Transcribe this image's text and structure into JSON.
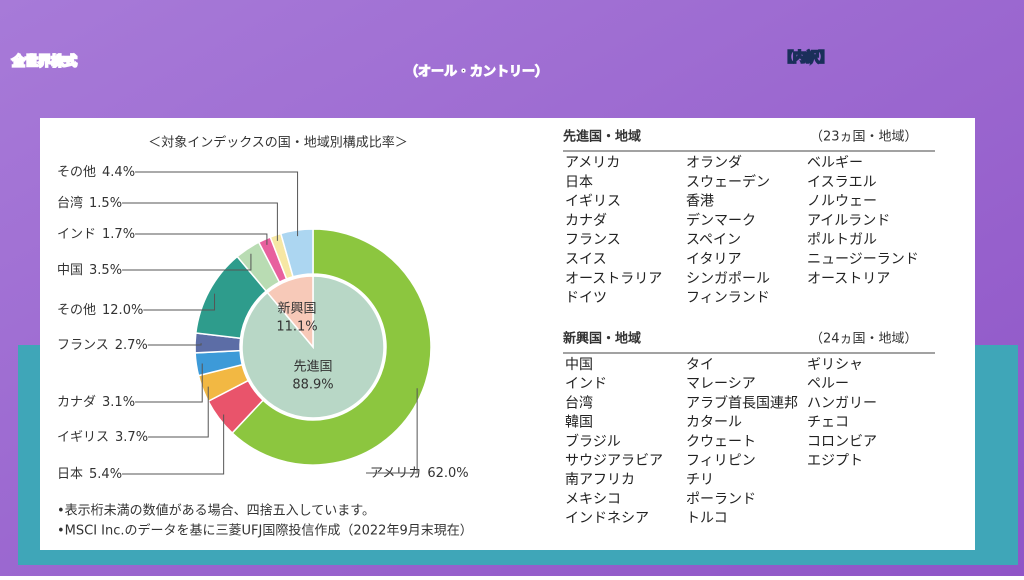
{
  "header": {
    "title": "全世界株式",
    "subtitle": "（オール・カントリー）",
    "tag": "【内訳】"
  },
  "chart_data": {
    "type": "donut",
    "title": "＜対象インデックスの国・地域別構成比率＞",
    "categories": [
      "アメリカ",
      "日本",
      "イギリス",
      "カナダ",
      "フランス",
      "その他",
      "中国",
      "インド",
      "台湾",
      "その他"
    ],
    "values": [
      62.0,
      5.4,
      3.7,
      3.1,
      2.7,
      12.0,
      3.5,
      1.7,
      1.5,
      4.4
    ],
    "value_labels": [
      "62.0%",
      "5.4%",
      "3.7%",
      "3.1%",
      "2.7%",
      "12.0%",
      "3.5%",
      "1.7%",
      "1.5%",
      "4.4%"
    ],
    "colors": [
      "#8cc63f",
      "#e9546b",
      "#f2b843",
      "#3d9ad8",
      "#5c6da6",
      "#2e9c8c",
      "#b9dcb3",
      "#e8609e",
      "#f6e7a4",
      "#acd6f1"
    ],
    "inner": {
      "categories": [
        "先進国",
        "新興国"
      ],
      "values": [
        88.9,
        11.1
      ],
      "value_labels": [
        "88.9%",
        "11.1%"
      ],
      "colors": [
        "#b8d7c6",
        "#f7c9b8"
      ]
    }
  },
  "notes": [
    "•表示桁未満の数値がある場合、四捨五入しています。",
    "•MSCI Inc.のデータを基に三菱UFJ国際投信作成（2022年9月末現在）"
  ],
  "developed": {
    "title": "先進国・地域",
    "count": "（23ヵ国・地域）",
    "countries": [
      "アメリカ",
      "日本",
      "イギリス",
      "カナダ",
      "フランス",
      "スイス",
      "オーストラリア",
      "ドイツ",
      "オランダ",
      "スウェーデン",
      "香港",
      "デンマーク",
      "スペイン",
      "イタリア",
      "シンガポール",
      "フィンランド",
      "ベルギー",
      "イスラエル",
      "ノルウェー",
      "アイルランド",
      "ポルトガル",
      "ニュージーランド",
      "オーストリア"
    ]
  },
  "emerging": {
    "title": "新興国・地域",
    "count": "（24ヵ国・地域）",
    "countries": [
      "中国",
      "インド",
      "台湾",
      "韓国",
      "ブラジル",
      "サウジアラビア",
      "南アフリカ",
      "メキシコ",
      "インドネシア",
      "タイ",
      "マレーシア",
      "アラブ首長国連邦",
      "カタール",
      "クウェート",
      "フィリピン",
      "チリ",
      "ポーランド",
      "トルコ",
      "ギリシャ",
      "ペルー",
      "ハンガリー",
      "チェコ",
      "コロンビア",
      "エジプト"
    ]
  }
}
